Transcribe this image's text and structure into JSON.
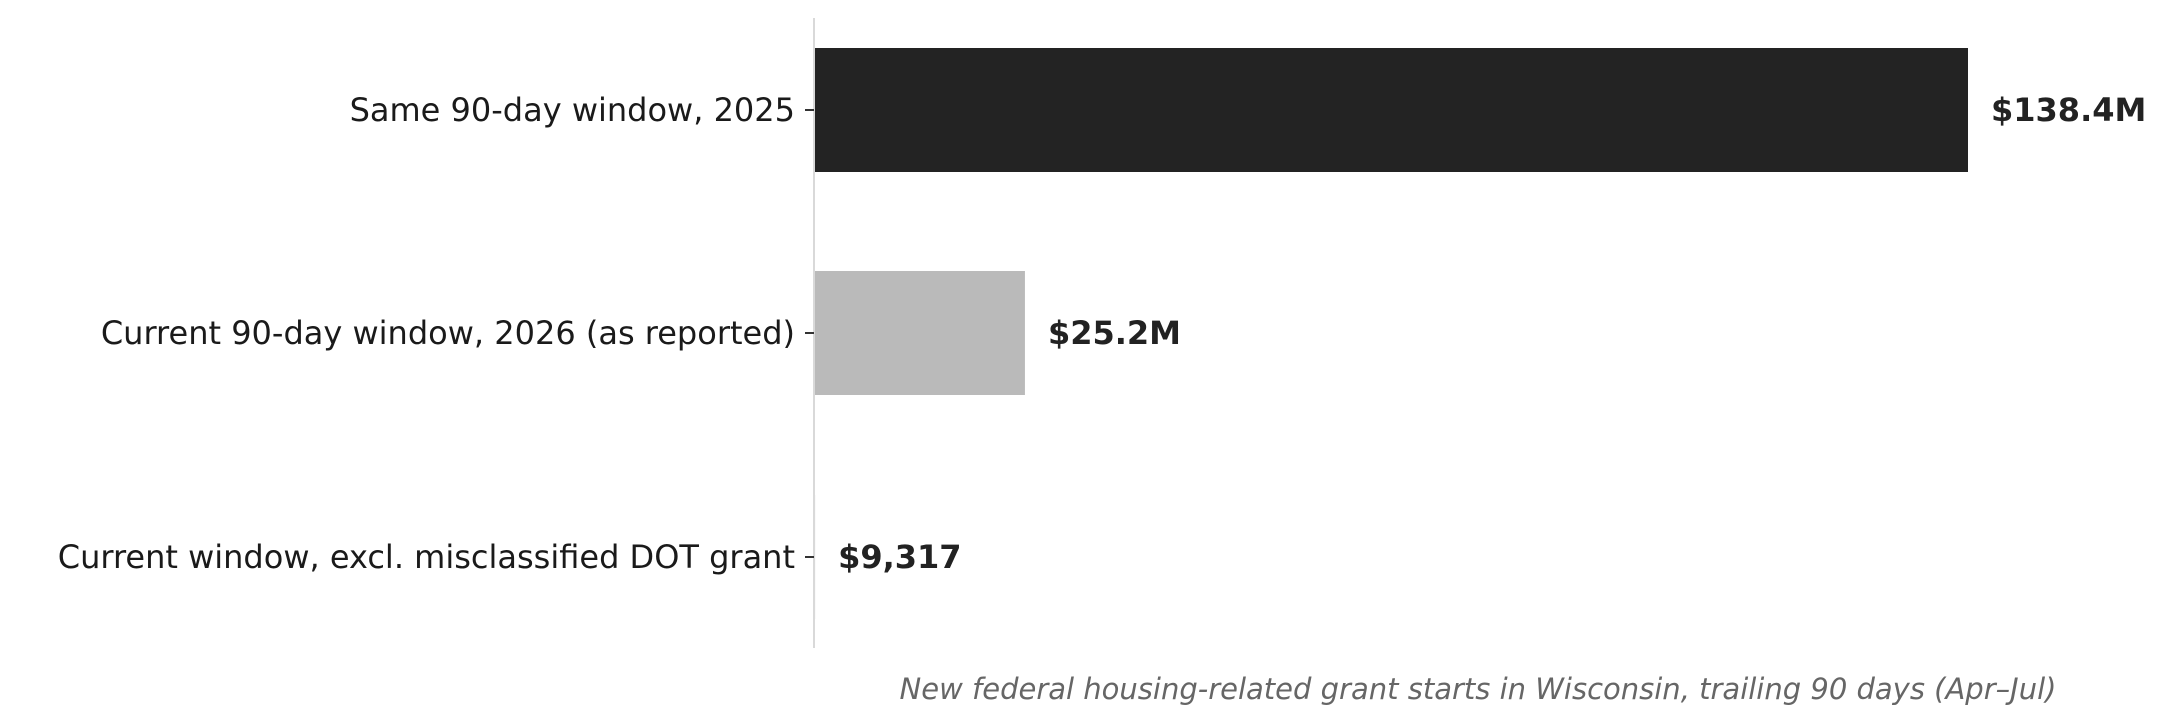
{
  "chart_data": {
    "type": "bar",
    "orientation": "horizontal",
    "categories": [
      "Same 90-day window, 2025",
      "Current 90-day window, 2026 (as reported)",
      "Current window, excl. misclassified DOT grant"
    ],
    "values": [
      138400000,
      25200000,
      9317
    ],
    "value_labels": [
      "$138.4M",
      "$25.2M",
      "$9,317"
    ],
    "bar_colors": [
      "#232323",
      "#bababa",
      "#bababa"
    ],
    "caption": "New federal housing-related grant starts in Wisconsin, trailing 90 days (Apr–Jul)",
    "xlim": [
      0,
      138400000
    ],
    "grid": false,
    "legend": "none"
  }
}
